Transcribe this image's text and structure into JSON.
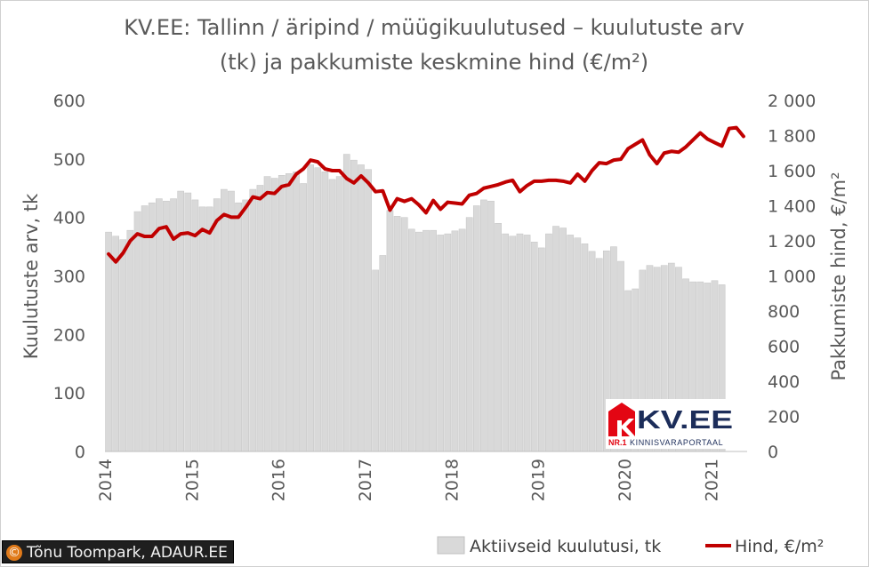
{
  "chart_data": {
    "type": "bar+line",
    "title": "KV.EE: Tallinn / äripind / müügikuulutused – kuulutuste arv",
    "subtitle": "(tk) ja pakkumiste keskmine hind (€/m²)",
    "ylabel_left": "Kuulutuste arv, tk",
    "ylabel_right": "Pakkumiste hind, €/m²",
    "ylim_left": [
      0,
      600
    ],
    "ylim_right": [
      0,
      2000
    ],
    "yticks_left": [
      "0",
      "100",
      "200",
      "300",
      "400",
      "500",
      "600"
    ],
    "yticks_right": [
      "0",
      "200",
      "400",
      "600",
      "800",
      "1 000",
      "1 200",
      "1 400",
      "1 600",
      "1 800",
      "2 000"
    ],
    "xticks": [
      "2014",
      "2015",
      "2016",
      "2017",
      "2018",
      "2019",
      "2020",
      "2021"
    ],
    "start_period": "2014-01",
    "legend": [
      "Aktiivseid kuulutusi, tk",
      "Hind, €/m²"
    ],
    "legend_position": "bottom",
    "series": [
      {
        "name": "Aktiivseid kuulutusi, tk",
        "kind": "bar",
        "axis": "left",
        "color": "#d9d9d9",
        "values": [
          375,
          368,
          362,
          378,
          410,
          420,
          425,
          432,
          428,
          432,
          445,
          442,
          430,
          418,
          418,
          432,
          448,
          445,
          425,
          430,
          448,
          455,
          470,
          467,
          472,
          475,
          478,
          458,
          490,
          485,
          478,
          465,
          470,
          508,
          498,
          490,
          482,
          310,
          335,
          412,
          402,
          400,
          380,
          375,
          378,
          378,
          370,
          372,
          377,
          380,
          400,
          420,
          430,
          428,
          390,
          372,
          368,
          372,
          370,
          358,
          348,
          372,
          385,
          382,
          370,
          365,
          355,
          342,
          330,
          343,
          350,
          325,
          275,
          278,
          310,
          318,
          315,
          318,
          322,
          315,
          295,
          290,
          290,
          288,
          292,
          285
        ]
      },
      {
        "name": "Hind, €/m²",
        "kind": "line",
        "axis": "right",
        "color": "#c00000",
        "values": [
          1125,
          1080,
          1130,
          1200,
          1240,
          1225,
          1225,
          1270,
          1280,
          1210,
          1240,
          1245,
          1230,
          1265,
          1245,
          1315,
          1350,
          1335,
          1335,
          1390,
          1450,
          1440,
          1475,
          1470,
          1510,
          1520,
          1580,
          1610,
          1660,
          1650,
          1610,
          1600,
          1600,
          1555,
          1530,
          1570,
          1530,
          1480,
          1485,
          1375,
          1440,
          1425,
          1440,
          1405,
          1360,
          1430,
          1380,
          1420,
          1415,
          1410,
          1460,
          1470,
          1500,
          1510,
          1520,
          1535,
          1545,
          1480,
          1515,
          1540,
          1540,
          1545,
          1545,
          1540,
          1530,
          1580,
          1540,
          1600,
          1645,
          1640,
          1660,
          1665,
          1725,
          1750,
          1775,
          1690,
          1640,
          1700,
          1710,
          1705,
          1735,
          1775,
          1815,
          1780,
          1760,
          1740,
          1840,
          1845,
          1795
        ]
      }
    ]
  },
  "credit": {
    "symbol": "©",
    "text": "Tõnu Toompark, ADAUR.EE"
  },
  "logo": {
    "brand": "KV.EE",
    "tagline_prefix": "NR.1",
    "tagline": "KINNISVARAPORTAAL",
    "colors": {
      "red": "#e30613",
      "navy": "#1c2d5a"
    }
  }
}
